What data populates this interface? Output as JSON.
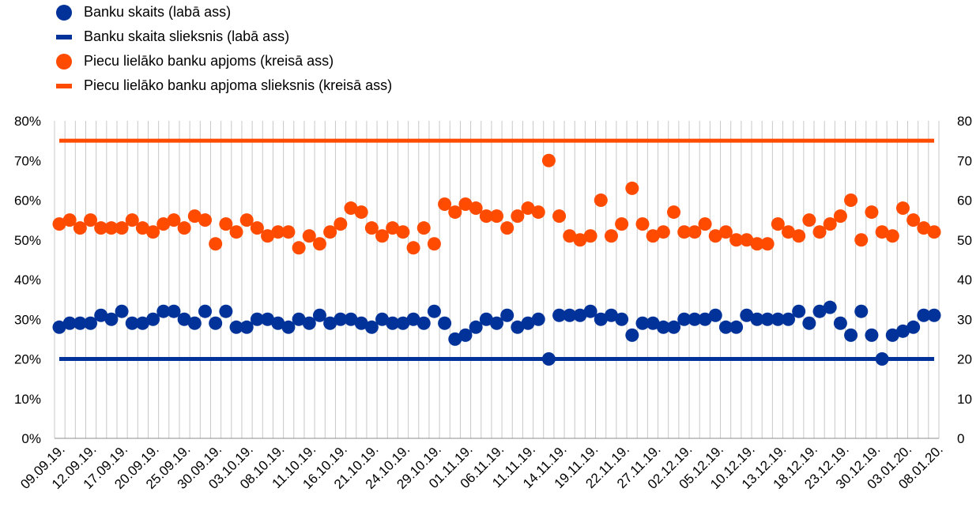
{
  "legend": [
    {
      "label": "Banku skaits (labā ass)",
      "marker": "dot",
      "color": "#003299"
    },
    {
      "label": "Banku skaita slieksnis (labā ass)",
      "marker": "bar",
      "color": "#003299"
    },
    {
      "label": "Piecu lielāko banku apjoms (kreisā ass)",
      "marker": "dot",
      "color": "#FF4B00"
    },
    {
      "label": "Piecu lielāko banku apjoma slieksnis (kreisā ass)",
      "marker": "bar",
      "color": "#FF4B00"
    }
  ],
  "chart_data": {
    "type": "scatter",
    "left_axis": {
      "min": 0,
      "max": 80,
      "step": 10,
      "format": "percent"
    },
    "right_axis": {
      "min": 0,
      "max": 80,
      "step": 10
    },
    "grid": "vertical",
    "legend_position": "top-left",
    "x_tick_labels": [
      "09.09.19.",
      "12.09.19.",
      "17.09.19.",
      "20.09.19.",
      "25.09.19.",
      "30.09.19.",
      "03.10.19.",
      "08.10.19.",
      "11.10.19.",
      "16.10.19.",
      "21.10.19.",
      "24.10.19.",
      "29.10.19.",
      "01.11.19.",
      "06.11.19.",
      "11.11.19.",
      "14.11.19.",
      "19.11.19.",
      "22.11.19.",
      "27.11.19.",
      "02.12.19.",
      "05.12.19.",
      "10.12.19.",
      "13.12.19.",
      "18.12.19.",
      "23.12.19.",
      "30.12.19.",
      "03.01.20.",
      "08.01.20."
    ],
    "series": [
      {
        "name": "Banku skaits (labā ass)",
        "axis": "right",
        "color": "#003299",
        "values": [
          28,
          29,
          29,
          29,
          31,
          30,
          32,
          29,
          29,
          30,
          32,
          32,
          30,
          29,
          32,
          29,
          32,
          28,
          28,
          30,
          30,
          29,
          28,
          30,
          29,
          31,
          29,
          30,
          30,
          29,
          28,
          30,
          29,
          29,
          30,
          29,
          32,
          29,
          25,
          26,
          28,
          30,
          29,
          31,
          28,
          29,
          30,
          20,
          31,
          31,
          31,
          32,
          30,
          31,
          30,
          26,
          29,
          29,
          28,
          28,
          30,
          30,
          30,
          31,
          28,
          28,
          31,
          30,
          30,
          30,
          30,
          32,
          29,
          32,
          33,
          29,
          26,
          32,
          26,
          20,
          26,
          27,
          28,
          31,
          31
        ]
      },
      {
        "name": "Banku skaita slieksnis (labā ass)",
        "axis": "right",
        "color": "#003299",
        "constant": 20
      },
      {
        "name": "Piecu lielāko banku apjoms (kreisā ass)",
        "axis": "left",
        "color": "#FF4B00",
        "values": [
          54,
          55,
          53,
          55,
          53,
          53,
          53,
          55,
          53,
          52,
          54,
          55,
          53,
          56,
          55,
          49,
          54,
          52,
          55,
          53,
          51,
          52,
          52,
          48,
          51,
          49,
          52,
          54,
          58,
          57,
          53,
          51,
          53,
          52,
          48,
          53,
          49,
          59,
          57,
          59,
          58,
          56,
          56,
          53,
          56,
          58,
          57,
          70,
          56,
          51,
          50,
          51,
          60,
          51,
          54,
          63,
          54,
          51,
          52,
          57,
          52,
          52,
          54,
          51,
          52,
          50,
          50,
          49,
          49,
          54,
          52,
          51,
          55,
          52,
          54,
          56,
          60,
          50,
          57,
          52,
          51,
          58,
          55,
          53,
          52
        ]
      },
      {
        "name": "Piecu lielāko banku apjoma slieksnis (kreisā ass)",
        "axis": "left",
        "color": "#FF4B00",
        "constant": 75
      }
    ]
  }
}
